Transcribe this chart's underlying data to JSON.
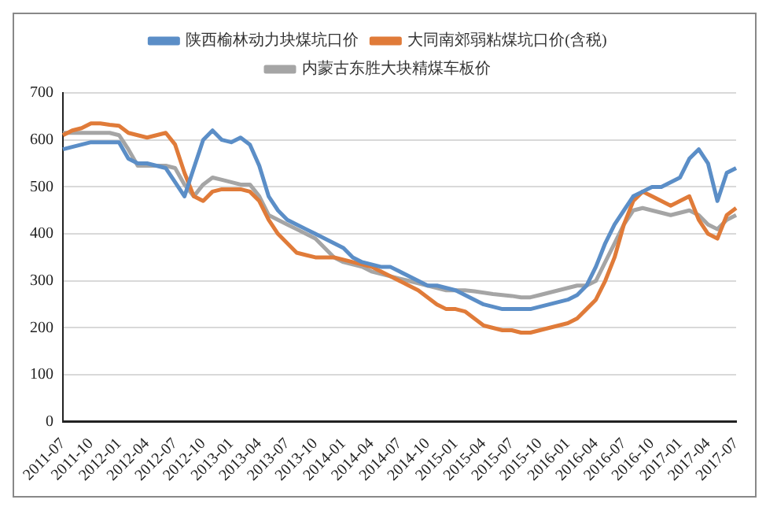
{
  "chart_data": {
    "type": "line",
    "categories": [
      "2011-07",
      null,
      null,
      "2011-10",
      null,
      null,
      "2012-01",
      null,
      null,
      "2012-04",
      null,
      null,
      "2012-07",
      null,
      null,
      "2012-10",
      null,
      null,
      "2013-01",
      null,
      null,
      "2013-04",
      null,
      null,
      "2013-07",
      null,
      null,
      "2013-10",
      null,
      null,
      "2014-01",
      null,
      null,
      "2014-04",
      null,
      null,
      "2014-07",
      null,
      null,
      "2014-10",
      null,
      null,
      "2015-01",
      null,
      null,
      "2015-04",
      null,
      null,
      "2015-07",
      null,
      null,
      "2015-10",
      null,
      null,
      "2016-01",
      null,
      null,
      "2016-04",
      null,
      null,
      "2016-07",
      null,
      null,
      "2016-10",
      null,
      null,
      "2017-01",
      null,
      null,
      "2017-04",
      null,
      null,
      "2017-07"
    ],
    "series": [
      {
        "name": "陕西榆林动力块煤坑口价",
        "color": "#5b8ec7",
        "values": [
          580,
          585,
          590,
          595,
          595,
          595,
          595,
          560,
          550,
          550,
          545,
          540,
          510,
          480,
          540,
          600,
          620,
          600,
          595,
          605,
          590,
          545,
          480,
          450,
          430,
          420,
          410,
          400,
          390,
          380,
          370,
          350,
          340,
          335,
          330,
          330,
          320,
          310,
          300,
          290,
          290,
          285,
          280,
          270,
          260,
          250,
          245,
          240,
          240,
          240,
          240,
          245,
          250,
          255,
          260,
          270,
          290,
          330,
          380,
          420,
          450,
          480,
          490,
          500,
          500,
          510,
          520,
          560,
          580,
          550,
          470,
          530,
          540
        ]
      },
      {
        "name": "大同南郊弱粘煤坑口价(含税)",
        "color": "#e07b39",
        "values": [
          610,
          620,
          625,
          635,
          635,
          632,
          630,
          615,
          610,
          605,
          610,
          615,
          590,
          530,
          480,
          470,
          490,
          495,
          495,
          495,
          490,
          470,
          430,
          400,
          380,
          360,
          355,
          350,
          350,
          350,
          345,
          340,
          335,
          330,
          320,
          310,
          300,
          290,
          280,
          265,
          250,
          240,
          240,
          235,
          220,
          205,
          200,
          195,
          195,
          190,
          190,
          195,
          200,
          205,
          210,
          220,
          240,
          260,
          300,
          350,
          420,
          470,
          490,
          480,
          470,
          460,
          470,
          480,
          430,
          400,
          390,
          440,
          455
        ]
      },
      {
        "name": "内蒙古东胜大块精煤车板价",
        "color": "#a5a5a5",
        "values": [
          615,
          615,
          615,
          615,
          615,
          615,
          610,
          580,
          545,
          545,
          545,
          545,
          540,
          505,
          480,
          505,
          520,
          515,
          510,
          505,
          505,
          480,
          440,
          430,
          420,
          410,
          400,
          390,
          370,
          350,
          340,
          335,
          330,
          320,
          315,
          310,
          305,
          300,
          295,
          290,
          285,
          280,
          280,
          280,
          278,
          275,
          272,
          270,
          268,
          265,
          265,
          270,
          275,
          280,
          285,
          290,
          290,
          300,
          340,
          380,
          420,
          450,
          455,
          450,
          445,
          440,
          445,
          450,
          440,
          420,
          410,
          430,
          440
        ]
      }
    ],
    "ylim": [
      0,
      700
    ],
    "yticks": [
      0,
      100,
      200,
      300,
      400,
      500,
      600,
      700
    ],
    "grid": "y",
    "legend": "top",
    "marker": "none",
    "line_style": "solid"
  }
}
